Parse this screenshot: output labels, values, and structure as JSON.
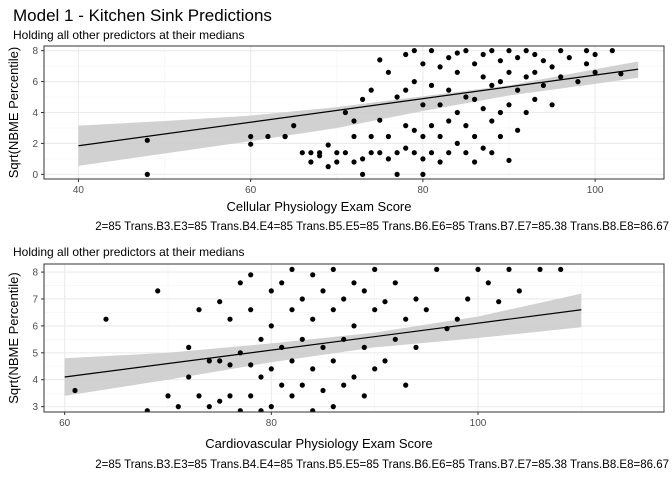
{
  "figure": {
    "title": "Model 1 - Kitchen Sink Predictions"
  },
  "colors": {
    "panel_background": "#ffffff",
    "panel_border": "#333333",
    "grid_major": "#ebebeb",
    "grid_minor": "#f5f5f5",
    "confidence_band": "#cccccc",
    "points": "#000000",
    "fit_line": "#000000",
    "tick_text": "#4d4d4d"
  },
  "chart_data": [
    {
      "type": "scatter",
      "subtitle": "Holding all other predictors at their medians",
      "xlabel": "Cellular Physiology Exam Score",
      "ylabel": "Sqrt(NBME Percentile)",
      "caption": "2=85 Trans.B3.E3=85 Trans.B4.E4=85 Trans.B5.E5=85 Trans.B6.E6=85 Trans.B7.E7=85.38 Trans.B8.E8=86.67",
      "xlim": [
        36,
        108
      ],
      "ylim": [
        -0.3,
        8.3
      ],
      "x_ticks": [
        40,
        60,
        80,
        100
      ],
      "y_ticks": [
        0,
        2,
        4,
        6,
        8
      ],
      "grid": true,
      "fit": {
        "x": [
          40,
          105
        ],
        "y": [
          1.85,
          6.8
        ]
      },
      "band": {
        "x": [
          40,
          50,
          60,
          70,
          80,
          90,
          100,
          105
        ],
        "lower": [
          0.55,
          1.35,
          2.15,
          3.0,
          4.1,
          5.1,
          5.85,
          6.25
        ],
        "upper": [
          3.15,
          3.45,
          3.8,
          4.35,
          5.05,
          5.75,
          6.8,
          7.3
        ]
      },
      "points": {
        "x": [
          48,
          48,
          60,
          60,
          62,
          64,
          64,
          65,
          66,
          67,
          67,
          68,
          68,
          69,
          69,
          70,
          70,
          71,
          71,
          72,
          72,
          72,
          73,
          73,
          73,
          74,
          74,
          74,
          75,
          75,
          75,
          76,
          76,
          76,
          77,
          77,
          77,
          78,
          78,
          78,
          78,
          79,
          79,
          79,
          79,
          80,
          80,
          80,
          80,
          80,
          81,
          81,
          81,
          81,
          82,
          82,
          82,
          82,
          83,
          83,
          83,
          83,
          84,
          84,
          84,
          84,
          85,
          85,
          85,
          85,
          86,
          86,
          86,
          86,
          87,
          87,
          87,
          87,
          88,
          88,
          88,
          88,
          89,
          89,
          89,
          89,
          90,
          90,
          90,
          90,
          91,
          91,
          91,
          92,
          92,
          92,
          93,
          93,
          93,
          94,
          94,
          95,
          95,
          96,
          96,
          97,
          98,
          99,
          99,
          100,
          100,
          102,
          103
        ],
        "y": [
          2.2,
          0,
          2.45,
          1.95,
          2.45,
          2.45,
          2.45,
          3.15,
          1.4,
          1.4,
          0.8,
          1.4,
          1.2,
          0.5,
          1.9,
          1.4,
          0.8,
          4.0,
          1.4,
          3.45,
          2.45,
          0.8,
          4.85,
          1.0,
          0,
          5.45,
          2.45,
          1.4,
          7.4,
          3.5,
          1.4,
          6.6,
          2.45,
          1.0,
          5.0,
          1.4,
          0,
          7.75,
          3.15,
          1.7,
          5.45,
          8.0,
          2.85,
          6.0,
          1.4,
          7.15,
          4.5,
          2.45,
          1.0,
          0,
          8.0,
          5.75,
          3.15,
          1.4,
          6.95,
          4.5,
          2.45,
          0.8,
          7.55,
          5.45,
          3.45,
          1.4,
          7.85,
          6.6,
          4.0,
          2.0,
          8.0,
          5.0,
          3.15,
          1.4,
          7.15,
          4.85,
          2.45,
          0.8,
          7.75,
          6.3,
          4.25,
          1.7,
          8.0,
          5.75,
          3.45,
          1.4,
          7.35,
          6.0,
          4.0,
          2.45,
          8.0,
          6.6,
          4.5,
          0.9,
          7.55,
          5.45,
          2.85,
          8.0,
          6.3,
          4.0,
          7.75,
          6.6,
          4.85,
          7.35,
          5.75,
          6.95,
          4.5,
          8.0,
          6.3,
          7.55,
          6.0,
          8.0,
          7.15,
          7.75,
          6.6,
          8.0,
          6.5
        ]
      }
    },
    {
      "type": "scatter",
      "subtitle": "Holding all other predictors at their medians",
      "xlabel": "Cardiovascular Physiology Exam Score",
      "ylabel": "Sqrt(NBME Percentile)",
      "caption": "2=85 Trans.B3.E3=85 Trans.B4.E4=85 Trans.B5.E5=85 Trans.B6.E6=85 Trans.B7.E7=85.38 Trans.B8.E8=86.67",
      "xlim": [
        58,
        118
      ],
      "ylim": [
        2.8,
        8.3
      ],
      "x_ticks": [
        60,
        80,
        100
      ],
      "y_ticks": [
        3,
        4,
        5,
        6,
        7,
        8
      ],
      "grid": true,
      "fit": {
        "x": [
          60,
          110
        ],
        "y": [
          4.1,
          6.6
        ]
      },
      "band": {
        "x": [
          60,
          70,
          80,
          90,
          100,
          110
        ],
        "lower": [
          3.4,
          4.0,
          4.65,
          5.2,
          5.55,
          5.95
        ],
        "upper": [
          4.8,
          5.0,
          5.35,
          5.75,
          6.35,
          7.2
        ]
      },
      "points": {
        "x": [
          61,
          64,
          68,
          69,
          70,
          71,
          72,
          72,
          73,
          73,
          74,
          74,
          75,
          75,
          75,
          76,
          76,
          76,
          77,
          77,
          77,
          78,
          78,
          78,
          78,
          79,
          79,
          79,
          80,
          80,
          80,
          80,
          81,
          81,
          81,
          82,
          82,
          82,
          82,
          83,
          83,
          83,
          84,
          84,
          84,
          84,
          85,
          85,
          85,
          86,
          86,
          86,
          86,
          87,
          87,
          87,
          88,
          88,
          88,
          89,
          89,
          89,
          90,
          90,
          90,
          91,
          91,
          92,
          92,
          93,
          93,
          94,
          94,
          95,
          96,
          97,
          98,
          99,
          100,
          101,
          102,
          103,
          104,
          106,
          108
        ],
        "y": [
          3.6,
          6.25,
          2.85,
          7.3,
          3.4,
          3.0,
          5.2,
          4.1,
          6.6,
          3.4,
          4.7,
          3.0,
          6.9,
          4.7,
          3.2,
          6.25,
          4.55,
          3.4,
          7.6,
          5.0,
          2.85,
          6.6,
          4.55,
          3.4,
          7.9,
          5.5,
          4.1,
          2.85,
          7.3,
          6.0,
          4.4,
          3.0,
          7.6,
          5.2,
          3.8,
          8.1,
          6.6,
          4.7,
          3.4,
          7.0,
          5.5,
          3.8,
          7.9,
          6.25,
          4.4,
          2.85,
          7.3,
          5.2,
          3.6,
          8.1,
          6.6,
          4.7,
          3.0,
          7.0,
          5.5,
          3.8,
          7.6,
          6.0,
          4.1,
          7.3,
          5.2,
          3.4,
          8.1,
          6.6,
          4.4,
          6.9,
          4.7,
          7.6,
          5.5,
          6.25,
          3.8,
          7.0,
          5.2,
          6.6,
          8.1,
          5.9,
          6.25,
          7.0,
          8.1,
          7.6,
          6.9,
          8.1,
          7.3,
          8.1,
          8.1
        ]
      }
    }
  ]
}
